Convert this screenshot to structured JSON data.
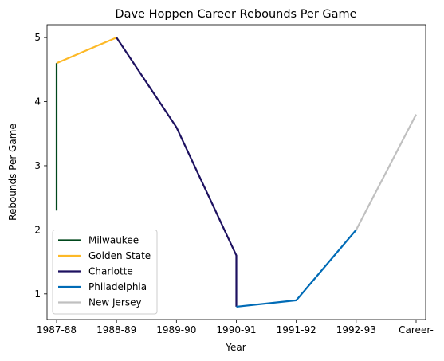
{
  "chart_data": {
    "type": "line",
    "title": "Dave Hoppen Career Rebounds Per Game",
    "xlabel": "Year",
    "ylabel": "Rebounds Per Game",
    "categories": [
      "1987-88",
      "1988-89",
      "1989-90",
      "1990-91",
      "1991-92",
      "1992-93",
      "Career-"
    ],
    "ylim": [
      0.6,
      5.2
    ],
    "yticks": [
      1,
      2,
      3,
      4,
      5
    ],
    "legend_position": "lower-left",
    "grid": false,
    "series": [
      {
        "name": "Milwaukee",
        "color": "#00471B",
        "points": [
          [
            "1987-88",
            2.3
          ],
          [
            "1987-88",
            4.6
          ]
        ]
      },
      {
        "name": "Golden State",
        "color": "#FDB927",
        "points": [
          [
            "1987-88",
            4.6
          ],
          [
            "1988-89",
            5.0
          ]
        ]
      },
      {
        "name": "Charlotte",
        "color": "#1D1160",
        "points": [
          [
            "1988-89",
            5.0
          ],
          [
            "1989-90",
            3.6
          ],
          [
            "1990-91",
            1.6
          ],
          [
            "1990-91",
            0.8
          ]
        ]
      },
      {
        "name": "Philadelphia",
        "color": "#006BB6",
        "points": [
          [
            "1990-91",
            0.8
          ],
          [
            "1991-92",
            0.9
          ],
          [
            "1992-93",
            2.0
          ]
        ]
      },
      {
        "name": "New Jersey",
        "color": "#C0C0C0",
        "points": [
          [
            "1992-93",
            2.0
          ],
          [
            "Career-",
            3.8
          ]
        ]
      }
    ]
  }
}
